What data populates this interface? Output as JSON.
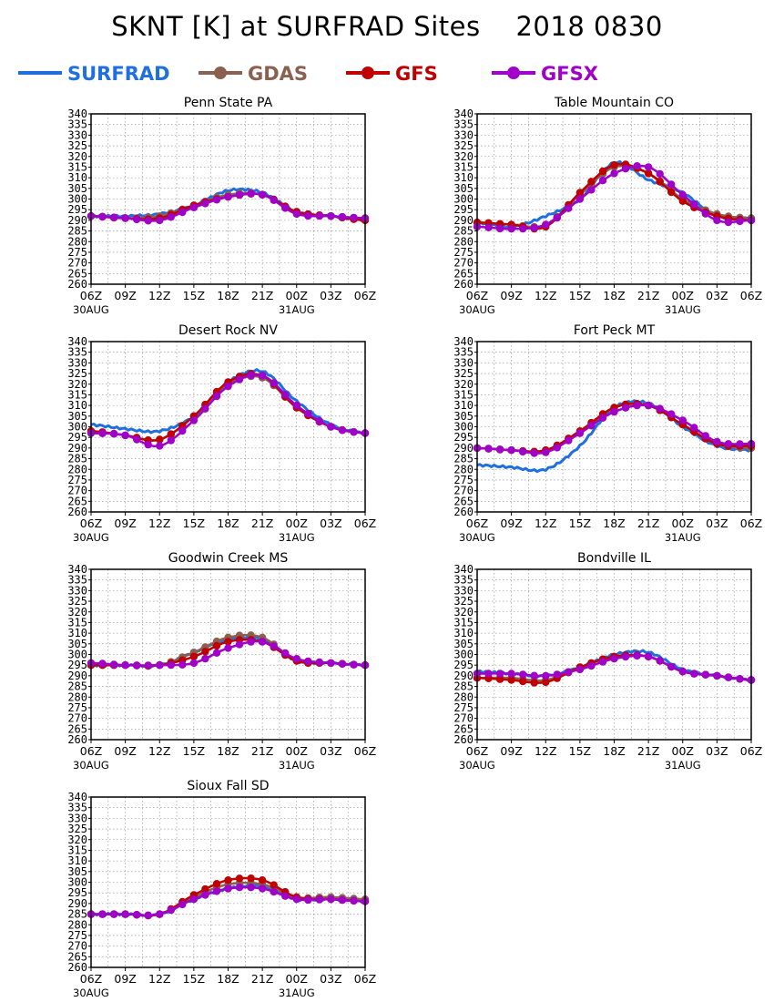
{
  "title": "SKNT [K] at SURFRAD Sites    2018 0830",
  "colors": {
    "SURFRAD": "#1f6fe0",
    "GDAS": "#8b6050",
    "GFS": "#c00000",
    "GFSX": "#a000c8"
  },
  "legend": [
    {
      "name": "SURFRAD",
      "marker": false
    },
    {
      "name": "GDAS",
      "marker": true
    },
    {
      "name": "GFS",
      "marker": true
    },
    {
      "name": "GFSX",
      "marker": true
    }
  ],
  "chart_data": [
    {
      "type": "line",
      "title": "Penn State PA",
      "x": [
        "06Z",
        "09Z",
        "12Z",
        "15Z",
        "18Z",
        "21Z",
        "00Z",
        "03Z",
        "06Z"
      ],
      "date_labels": [
        "30AUG",
        "31AUG"
      ],
      "ylim": [
        260,
        340
      ],
      "yticks": [
        260,
        265,
        270,
        275,
        280,
        285,
        290,
        295,
        300,
        305,
        310,
        315,
        320,
        325,
        330,
        335,
        340
      ],
      "grid": true,
      "series": [
        {
          "name": "SURFRAD",
          "values": [
            292,
            292,
            293,
            297,
            304,
            303,
            294,
            292,
            290
          ]
        },
        {
          "name": "GDAS",
          "values": [
            292,
            291,
            292,
            297,
            302,
            302,
            294,
            292,
            291
          ]
        },
        {
          "name": "GFS",
          "values": [
            292,
            291,
            291,
            297,
            301,
            302,
            294,
            292,
            290
          ]
        },
        {
          "name": "GFSX",
          "values": [
            292,
            291,
            290,
            296,
            301,
            302,
            293,
            292,
            291
          ]
        }
      ]
    },
    {
      "type": "line",
      "title": "Table Mountain CO",
      "x": [
        "06Z",
        "09Z",
        "12Z",
        "15Z",
        "18Z",
        "21Z",
        "00Z",
        "03Z",
        "06Z"
      ],
      "date_labels": [
        "30AUG",
        "31AUG"
      ],
      "ylim": [
        260,
        340
      ],
      "yticks": [
        260,
        265,
        270,
        275,
        280,
        285,
        290,
        295,
        300,
        305,
        310,
        315,
        320,
        325,
        330,
        335,
        340
      ],
      "grid": true,
      "series": [
        {
          "name": "SURFRAD",
          "values": [
            289,
            287,
            292,
            300,
            317,
            309,
            303,
            292,
            291
          ]
        },
        {
          "name": "GDAS",
          "values": [
            289,
            288,
            288,
            302,
            315,
            312,
            300,
            293,
            291
          ]
        },
        {
          "name": "GFS",
          "values": [
            289,
            288,
            287,
            303,
            316,
            312,
            299,
            292,
            290
          ]
        },
        {
          "name": "GFSX",
          "values": [
            287,
            286,
            288,
            300,
            312,
            315,
            302,
            290,
            290
          ]
        }
      ]
    },
    {
      "type": "line",
      "title": "Desert Rock NV",
      "x": [
        "06Z",
        "09Z",
        "12Z",
        "15Z",
        "18Z",
        "21Z",
        "00Z",
        "03Z",
        "06Z"
      ],
      "date_labels": [
        "30AUG",
        "31AUG"
      ],
      "ylim": [
        260,
        340
      ],
      "yticks": [
        260,
        265,
        270,
        275,
        280,
        285,
        290,
        295,
        300,
        305,
        310,
        315,
        320,
        325,
        330,
        335,
        340
      ],
      "grid": true,
      "series": [
        {
          "name": "SURFRAD",
          "values": [
            301,
            299,
            298,
            305,
            321,
            326,
            312,
            301,
            297
          ]
        },
        {
          "name": "GDAS",
          "values": [
            298,
            296,
            294,
            305,
            320,
            323,
            309,
            300,
            297
          ]
        },
        {
          "name": "GFS",
          "values": [
            298,
            296,
            294,
            305,
            321,
            324,
            309,
            300,
            297
          ]
        },
        {
          "name": "GFSX",
          "values": [
            297,
            296,
            291,
            303,
            319,
            324,
            310,
            300,
            297
          ]
        }
      ]
    },
    {
      "type": "line",
      "title": "Fort Peck MT",
      "x": [
        "06Z",
        "09Z",
        "12Z",
        "15Z",
        "18Z",
        "21Z",
        "00Z",
        "03Z",
        "06Z"
      ],
      "date_labels": [
        "30AUG",
        "31AUG"
      ],
      "ylim": [
        260,
        340
      ],
      "yticks": [
        260,
        265,
        270,
        275,
        280,
        285,
        290,
        295,
        300,
        305,
        310,
        315,
        320,
        325,
        330,
        335,
        340
      ],
      "grid": true,
      "series": [
        {
          "name": "SURFRAD",
          "values": [
            282,
            281,
            280,
            291,
            309,
            311,
            300,
            291,
            289
          ]
        },
        {
          "name": "GDAS",
          "values": [
            290,
            289,
            289,
            297,
            309,
            310,
            301,
            292,
            290
          ]
        },
        {
          "name": "GFS",
          "values": [
            290,
            289,
            289,
            298,
            309,
            310,
            301,
            292,
            291
          ]
        },
        {
          "name": "GFSX",
          "values": [
            290,
            289,
            288,
            297,
            307,
            310,
            303,
            293,
            292
          ]
        }
      ]
    },
    {
      "type": "line",
      "title": "Goodwin Creek MS",
      "x": [
        "06Z",
        "09Z",
        "12Z",
        "15Z",
        "18Z",
        "21Z",
        "00Z",
        "03Z",
        "06Z"
      ],
      "date_labels": [
        "30AUG",
        "31AUG"
      ],
      "ylim": [
        260,
        340
      ],
      "yticks": [
        260,
        265,
        270,
        275,
        280,
        285,
        290,
        295,
        300,
        305,
        310,
        315,
        320,
        325,
        330,
        335,
        340
      ],
      "grid": true,
      "series": [
        {
          "name": "SURFRAD",
          "values": [
            295,
            295,
            295,
            301,
            307,
            307,
            297,
            296,
            295
          ]
        },
        {
          "name": "GDAS",
          "values": [
            295,
            295,
            295,
            301,
            308,
            308,
            297,
            296,
            295
          ]
        },
        {
          "name": "GFS",
          "values": [
            295,
            295,
            295,
            299,
            306,
            306,
            297,
            296,
            295
          ]
        },
        {
          "name": "GFSX",
          "values": [
            296,
            295,
            295,
            296,
            303,
            306,
            298,
            296,
            295
          ]
        }
      ]
    },
    {
      "type": "line",
      "title": "Bondville IL",
      "x": [
        "06Z",
        "09Z",
        "12Z",
        "15Z",
        "18Z",
        "21Z",
        "00Z",
        "03Z",
        "06Z"
      ],
      "date_labels": [
        "30AUG",
        "31AUG"
      ],
      "ylim": [
        260,
        340
      ],
      "yticks": [
        260,
        265,
        270,
        275,
        280,
        285,
        290,
        295,
        300,
        305,
        310,
        315,
        320,
        325,
        330,
        335,
        340
      ],
      "grid": true,
      "series": [
        {
          "name": "SURFRAD",
          "values": [
            292,
            291,
            290,
            294,
            300,
            301,
            293,
            290,
            288
          ]
        },
        {
          "name": "GDAS",
          "values": [
            289,
            289,
            288,
            294,
            299,
            299,
            292,
            290,
            288
          ]
        },
        {
          "name": "GFS",
          "values": [
            289,
            288,
            287,
            294,
            299,
            299,
            292,
            290,
            288
          ]
        },
        {
          "name": "GFSX",
          "values": [
            291,
            291,
            290,
            293,
            298,
            299,
            292,
            290,
            288
          ]
        }
      ]
    },
    {
      "type": "line",
      "title": "Sioux Fall SD",
      "x": [
        "06Z",
        "09Z",
        "12Z",
        "15Z",
        "18Z",
        "21Z",
        "00Z",
        "03Z",
        "06Z"
      ],
      "date_labels": [
        "30AUG",
        "31AUG"
      ],
      "ylim": [
        260,
        340
      ],
      "yticks": [
        260,
        265,
        270,
        275,
        280,
        285,
        290,
        295,
        300,
        305,
        310,
        315,
        320,
        325,
        330,
        335,
        340
      ],
      "grid": true,
      "series": [
        {
          "name": "SURFRAD",
          "values": [
            285,
            285,
            285,
            292,
            297,
            298,
            292,
            292,
            291
          ]
        },
        {
          "name": "GDAS",
          "values": [
            285,
            285,
            285,
            293,
            299,
            299,
            293,
            293,
            292
          ]
        },
        {
          "name": "GFS",
          "values": [
            285,
            285,
            285,
            294,
            301,
            301,
            293,
            292,
            291
          ]
        },
        {
          "name": "GFSX",
          "values": [
            285,
            285,
            285,
            292,
            297,
            297,
            292,
            292,
            291
          ]
        }
      ]
    }
  ]
}
